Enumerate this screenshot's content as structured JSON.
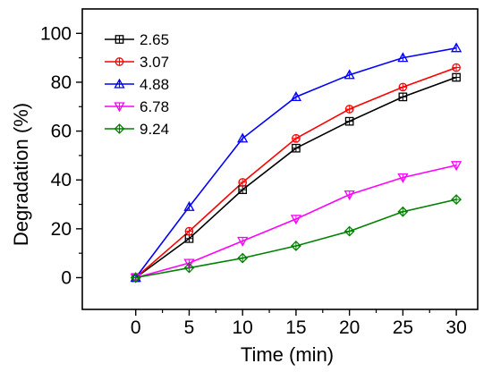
{
  "chart_data": {
    "type": "line",
    "xlabel": "Time (min)",
    "ylabel": "Degradation (%)",
    "xlim": [
      -5,
      32
    ],
    "ylim": [
      -13,
      110
    ],
    "xticks": [
      0,
      5,
      10,
      15,
      20,
      25,
      30
    ],
    "yticks": [
      0,
      20,
      40,
      60,
      80,
      100
    ],
    "grid": false,
    "legend_position": "top-left",
    "x": [
      0,
      5,
      10,
      15,
      20,
      25,
      30
    ],
    "series": [
      {
        "name": "2.65",
        "color": "#000000",
        "marker": "square",
        "values": [
          0,
          16,
          36,
          53,
          64,
          74,
          82
        ]
      },
      {
        "name": "3.07",
        "color": "#ff0000",
        "marker": "circle",
        "values": [
          0,
          19,
          39,
          57,
          69,
          78,
          86
        ]
      },
      {
        "name": "4.88",
        "color": "#0000ff",
        "marker": "triangle-up",
        "values": [
          0,
          29,
          57,
          74,
          83,
          90,
          94
        ]
      },
      {
        "name": "6.78",
        "color": "#ff00ff",
        "marker": "triangle-down",
        "values": [
          0,
          6,
          15,
          24,
          34,
          41,
          46
        ]
      },
      {
        "name": "9.24",
        "color": "#008000",
        "marker": "diamond",
        "values": [
          0,
          4,
          8,
          13,
          19,
          27,
          32
        ]
      }
    ]
  }
}
